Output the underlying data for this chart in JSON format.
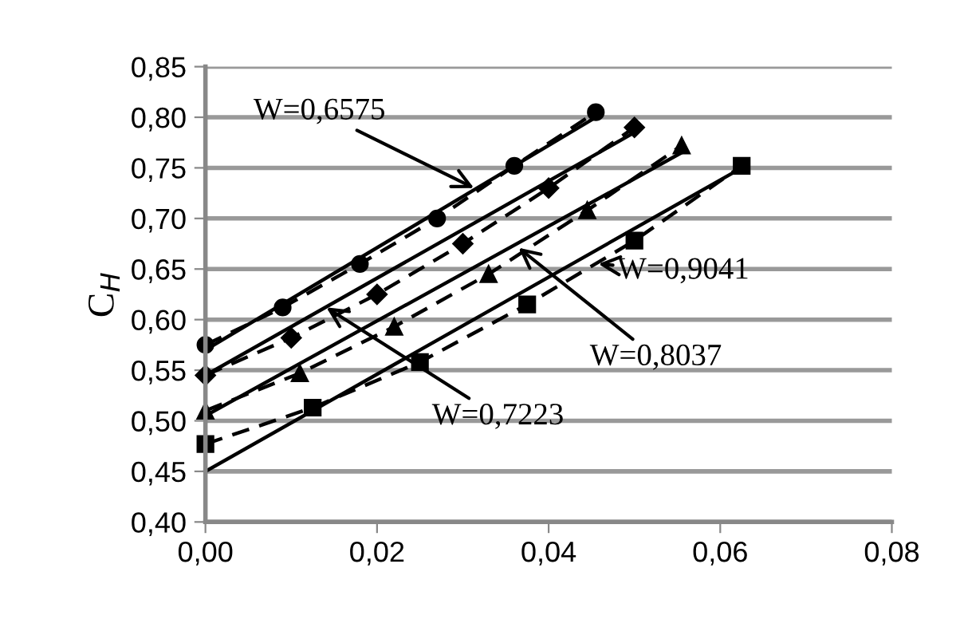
{
  "chart_data": {
    "type": "line",
    "ylabel": "C$_{H}$",
    "xlim": [
      0,
      0.08
    ],
    "ylim": [
      0.4,
      0.85
    ],
    "xticks": [
      {
        "value": 0,
        "label": "0,00"
      },
      {
        "value": 0.02,
        "label": "0,02"
      },
      {
        "value": 0.04,
        "label": "0,04"
      },
      {
        "value": 0.06,
        "label": "0,06"
      },
      {
        "value": 0.08,
        "label": "0,08"
      }
    ],
    "yticks": [
      {
        "value": 0.4,
        "label": "0,40"
      },
      {
        "value": 0.45,
        "label": "0,45"
      },
      {
        "value": 0.5,
        "label": "0,50"
      },
      {
        "value": 0.55,
        "label": "0,55"
      },
      {
        "value": 0.6,
        "label": "0,60"
      },
      {
        "value": 0.65,
        "label": "0,65"
      },
      {
        "value": 0.7,
        "label": "0,70"
      },
      {
        "value": 0.75,
        "label": "0,75"
      },
      {
        "value": 0.8,
        "label": "0,80"
      },
      {
        "value": 0.85,
        "label": "0,85"
      }
    ],
    "grid": "y",
    "legend": false,
    "series": [
      {
        "color": "#000000",
        "marker": "circle",
        "line_style": "dashed",
        "x": [
          0,
          0.009,
          0.018,
          0.027,
          0.036,
          0.0455
        ],
        "values": [
          0.575,
          0.612,
          0.655,
          0.7,
          0.752,
          0.805
        ]
      },
      {
        "color": "#000000",
        "marker": "diamond",
        "line_style": "dashed",
        "x": [
          0,
          0.01,
          0.02,
          0.03,
          0.04,
          0.05
        ],
        "values": [
          0.545,
          0.582,
          0.625,
          0.675,
          0.73,
          0.79
        ]
      },
      {
        "color": "#000000",
        "marker": "triangle",
        "line_style": "dashed",
        "x": [
          0,
          0.011,
          0.022,
          0.033,
          0.0445,
          0.0555
        ],
        "values": [
          0.51,
          0.547,
          0.593,
          0.645,
          0.708,
          0.772
        ]
      },
      {
        "color": "#000000",
        "marker": "square",
        "line_style": "dashed",
        "x": [
          0,
          0.0125,
          0.025,
          0.0375,
          0.05,
          0.0625
        ],
        "values": [
          0.477,
          0.513,
          0.558,
          0.615,
          0.678,
          0.752
        ]
      },
      {
        "color": "#000000",
        "marker": "none",
        "line_style": "solid",
        "x": [
          0,
          0.0455
        ],
        "values": [
          0.57,
          0.8
        ]
      },
      {
        "color": "#000000",
        "marker": "none",
        "line_style": "solid",
        "x": [
          0,
          0.05
        ],
        "values": [
          0.545,
          0.785
        ]
      },
      {
        "color": "#000000",
        "marker": "none",
        "line_style": "solid",
        "x": [
          0,
          0.0555
        ],
        "values": [
          0.505,
          0.765
        ]
      },
      {
        "color": "#000000",
        "marker": "none",
        "line_style": "solid",
        "x": [
          0,
          0.0625
        ],
        "values": [
          0.45,
          0.75
        ]
      }
    ],
    "annotations": [
      {
        "text": "W=0,6575",
        "x": 0.0313,
        "y": 0.73
      },
      {
        "text": "W=0,9041",
        "x": 0.0458,
        "y": 0.655
      },
      {
        "text": "W=0,8037",
        "x": 0.0365,
        "y": 0.671
      },
      {
        "text": "W=0,7223",
        "x": 0.0141,
        "y": 0.612
      }
    ]
  }
}
